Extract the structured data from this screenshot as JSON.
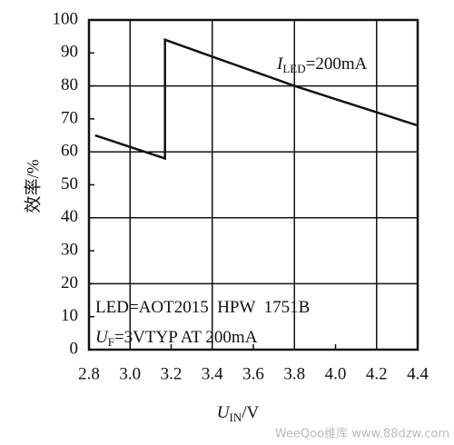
{
  "chart_data": {
    "type": "line",
    "y_label": "效率/%",
    "x_label": {
      "main": "U",
      "sub": "IN",
      "rest": "/V"
    },
    "annotations": [
      {
        "main": "I",
        "sub": "LED",
        "rest": "=200mA"
      },
      {
        "main": "LED=AOT2015  HPW  1751B"
      },
      {
        "main": "U",
        "sub": "F",
        "rest": "=3VTYP AT 200mA"
      }
    ],
    "watermark": "WeeQoo维库 www.88dzw.com",
    "x": [
      2.83,
      3.17,
      3.17,
      3.8,
      4.4
    ],
    "series": [
      {
        "name": "efficiency",
        "color": "#111111",
        "values": [
          65,
          58,
          94,
          80,
          68
        ]
      }
    ],
    "xlim": [
      2.8,
      4.4
    ],
    "xticks": [
      2.8,
      {
        "value": 3,
        "label": "3.0"
      },
      3.2,
      3.4,
      3.6,
      3.8,
      {
        "value": 4,
        "label": "4.0"
      },
      4.2,
      4.4
    ],
    "ylim": [
      0,
      100
    ],
    "yticks": [
      0,
      10,
      20,
      30,
      40,
      50,
      60,
      70,
      80,
      90,
      100
    ],
    "grid": true
  }
}
